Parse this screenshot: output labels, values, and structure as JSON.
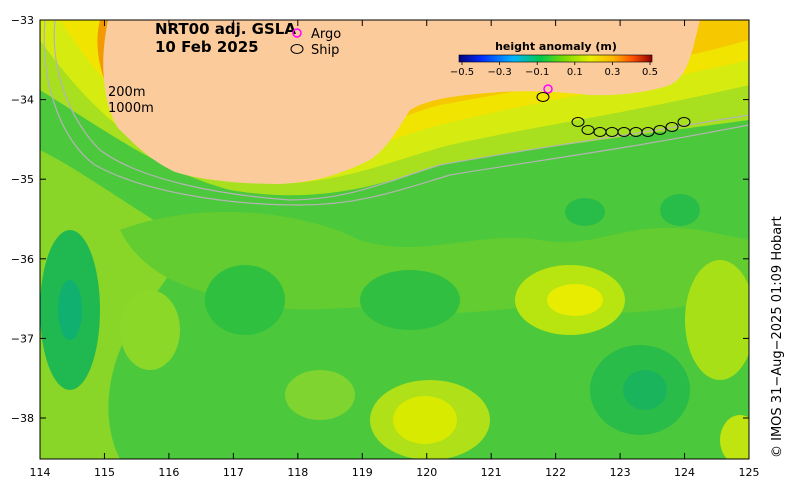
{
  "title": {
    "line1": "NRT00 adj. GSLA",
    "line2": "10 Feb 2025"
  },
  "legend": {
    "argo_label": "Argo",
    "ship_label": "Ship"
  },
  "isobaths": {
    "shallow": "200m",
    "deep": "1000m"
  },
  "colorbar": {
    "label": "height anomaly (m)",
    "ticks": [
      "−0.5",
      "−0.3",
      "−0.1",
      "0.1",
      "0.3",
      "0.5"
    ],
    "range": [
      -0.5,
      0.5
    ]
  },
  "axes": {
    "x_ticks": [
      "114",
      "115",
      "116",
      "117",
      "118",
      "119",
      "120",
      "121",
      "122",
      "123",
      "124",
      "125"
    ],
    "y_ticks": [
      "−33",
      "−34",
      "−35",
      "−36",
      "−37",
      "−38"
    ]
  },
  "credit": "© IMOS 31−Aug−2025 01:09 Hobart",
  "colors": {
    "land": "#fccb9c",
    "ocean_base": "#4cc83c",
    "argo": "#ff00ff",
    "isobath": "#b4b4b4"
  }
}
